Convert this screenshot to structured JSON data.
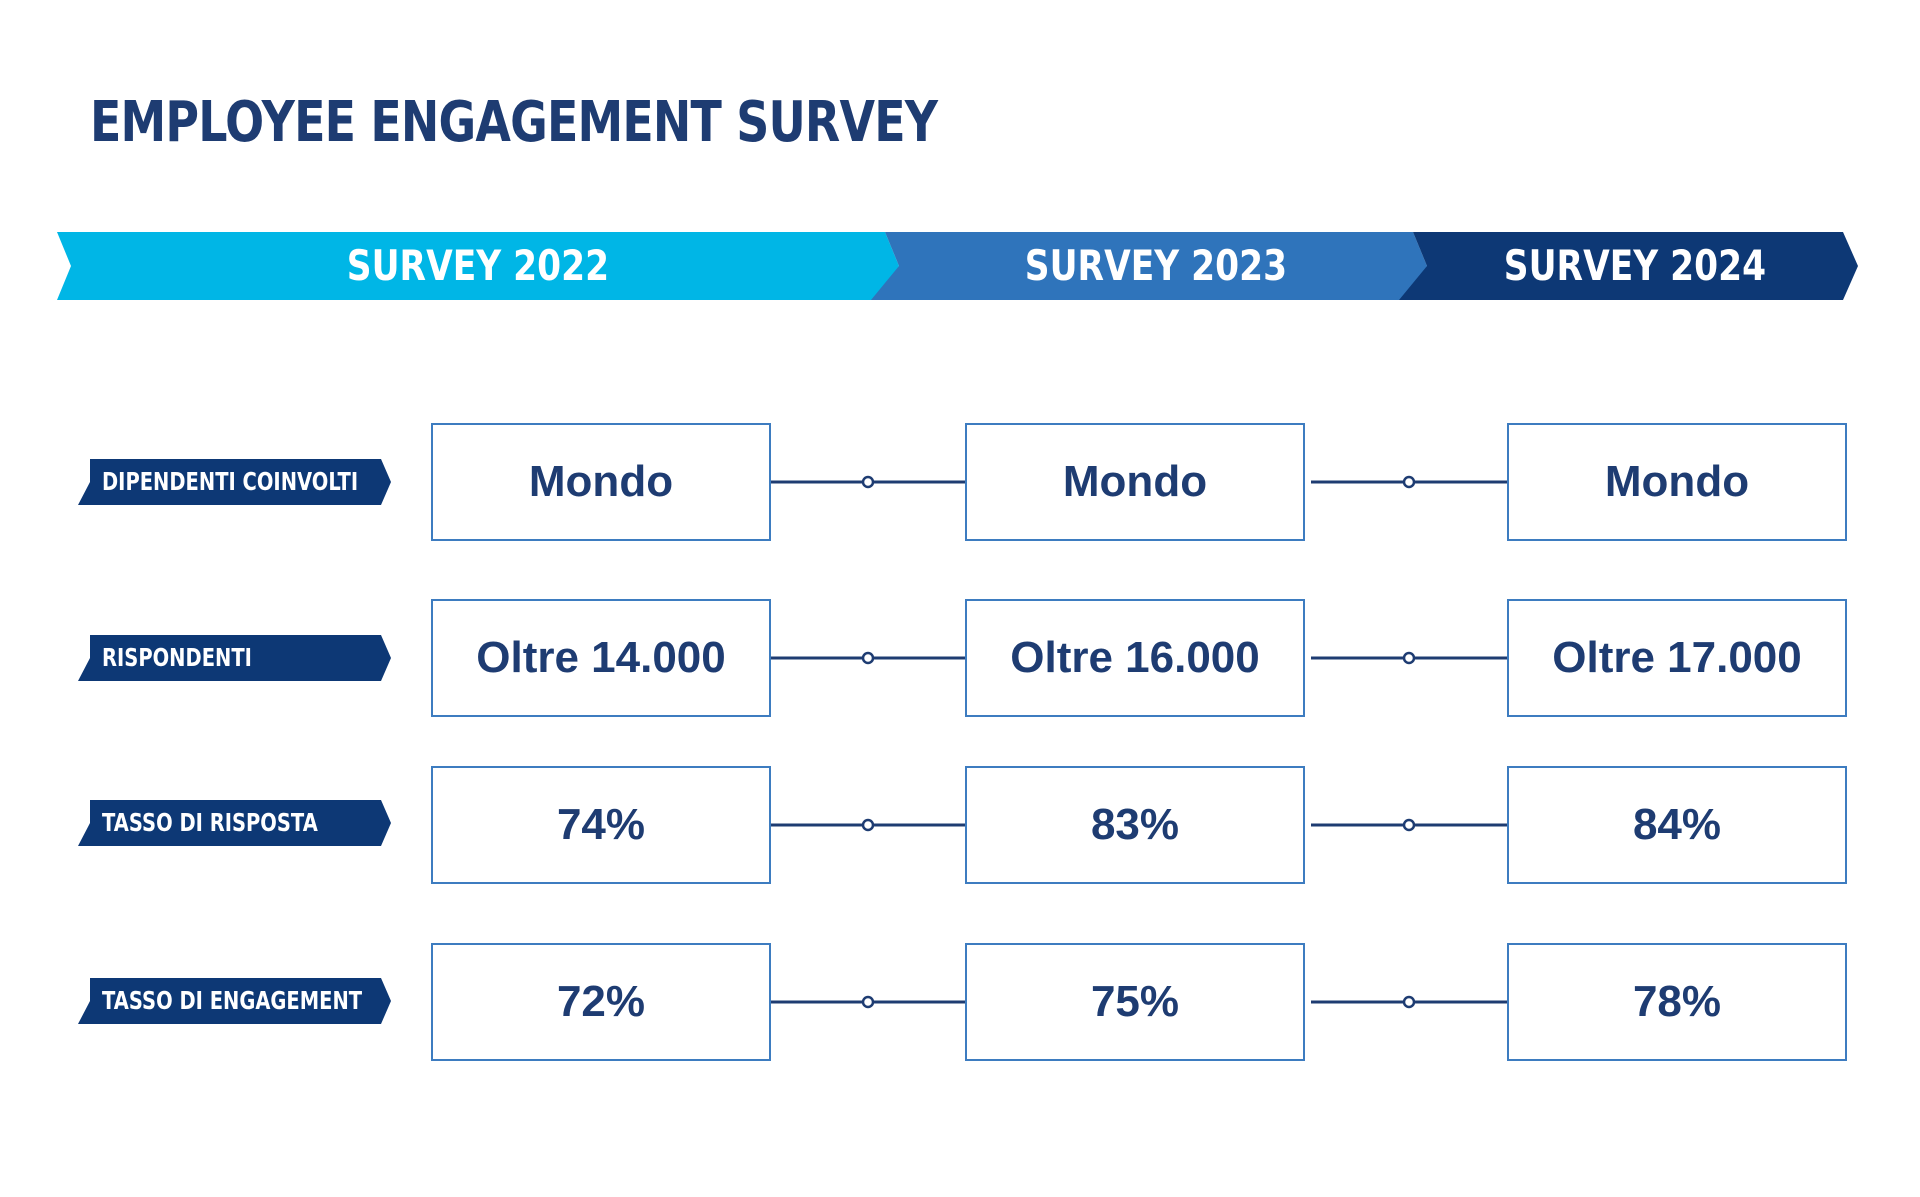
{
  "title": "EMPLOYEE ENGAGEMENT SURVEY",
  "colors": {
    "navy": "#1e3c72",
    "dark_blue": "#0d3875",
    "mid_blue": "#2f74bb",
    "cyan": "#00b6e6",
    "box_border": "#3d7cc0",
    "connector": "#1e3c72"
  },
  "timeline": [
    {
      "label": "SURVEY 2022",
      "color": "#00b6e6"
    },
    {
      "label": "SURVEY 2023",
      "color": "#2f74bb"
    },
    {
      "label": "SURVEY 2024",
      "color": "#0d3875"
    }
  ],
  "rows": [
    {
      "label": "DIPENDENTI COINVOLTI",
      "values": [
        "Mondo",
        "Mondo",
        "Mondo"
      ]
    },
    {
      "label": "RISPONDENTI",
      "values": [
        "Oltre 14.000",
        "Oltre 16.000",
        "Oltre 17.000"
      ]
    },
    {
      "label": "TASSO DI RISPOSTA",
      "values": [
        "74%",
        "83%",
        "84%"
      ]
    },
    {
      "label": "TASSO DI ENGAGEMENT",
      "values": [
        "72%",
        "75%",
        "78%"
      ]
    }
  ]
}
